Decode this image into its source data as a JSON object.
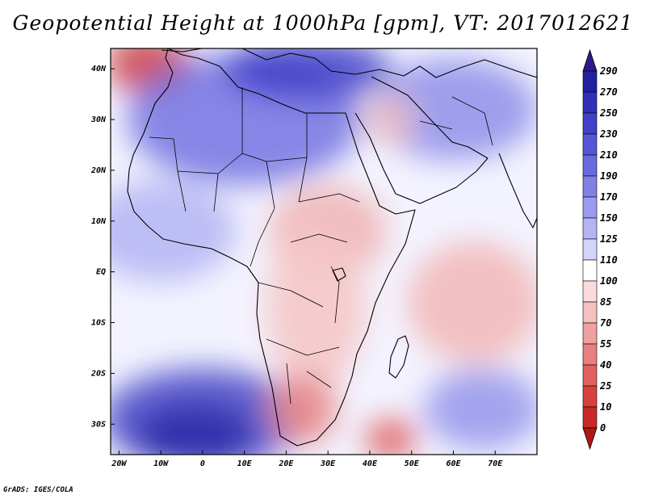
{
  "title": "Geopotential Height at 1000hPa [gpm], VT: 2017012621",
  "credit": "GrADS: IGES/COLA",
  "map": {
    "lon_range": [
      -22,
      80
    ],
    "lat_range": [
      -36,
      44
    ],
    "lat_ticks": [
      {
        "value": 40,
        "label": "40N"
      },
      {
        "value": 30,
        "label": "30N"
      },
      {
        "value": 20,
        "label": "20N"
      },
      {
        "value": 10,
        "label": "10N"
      },
      {
        "value": 0,
        "label": "EQ"
      },
      {
        "value": -10,
        "label": "10S"
      },
      {
        "value": -20,
        "label": "20S"
      },
      {
        "value": -30,
        "label": "30S"
      }
    ],
    "lon_ticks": [
      {
        "value": -20,
        "label": "20W"
      },
      {
        "value": -10,
        "label": "10W"
      },
      {
        "value": 0,
        "label": "0"
      },
      {
        "value": 10,
        "label": "10E"
      },
      {
        "value": 20,
        "label": "20E"
      },
      {
        "value": 30,
        "label": "30E"
      },
      {
        "value": 40,
        "label": "40E"
      },
      {
        "value": 50,
        "label": "50E"
      },
      {
        "value": 60,
        "label": "60E"
      },
      {
        "value": 70,
        "label": "70E"
      }
    ],
    "field_background": "#f3f3ff",
    "field_blobs": [
      {
        "name": "atlantic-north-low",
        "lon": -13,
        "lat": 41,
        "rlon": 10,
        "rlat": 6,
        "color": "#cc4040",
        "opacity": 0.85
      },
      {
        "name": "saharan-high",
        "lon": 10,
        "lat": 30,
        "rlon": 28,
        "rlat": 13,
        "color": "#6a6ae0",
        "opacity": 0.8
      },
      {
        "name": "mediterranean-high",
        "lon": 25,
        "lat": 40,
        "rlon": 20,
        "rlat": 6,
        "color": "#4040c8",
        "opacity": 0.85
      },
      {
        "name": "atlantic-tropical-high",
        "lon": -10,
        "lat": 8,
        "rlon": 18,
        "rlat": 10,
        "color": "#b8b8f5",
        "opacity": 0.9
      },
      {
        "name": "south-atlantic-high",
        "lon": 0,
        "lat": -29,
        "rlon": 24,
        "rlat": 10,
        "color": "#4848c8",
        "opacity": 0.85
      },
      {
        "name": "south-atlantic-core",
        "lon": -2,
        "lat": -32,
        "rlon": 14,
        "rlat": 6,
        "color": "#2a2aa8",
        "opacity": 0.85
      },
      {
        "name": "arabia-high",
        "lon": 60,
        "lat": 32,
        "rlon": 20,
        "rlat": 10,
        "color": "#8a8ae8",
        "opacity": 0.8
      },
      {
        "name": "indian-ocean-high",
        "lon": 67,
        "lat": -27,
        "rlon": 14,
        "rlat": 8,
        "color": "#8a8ae8",
        "opacity": 0.75
      },
      {
        "name": "horn-low",
        "lon": 30,
        "lat": 8,
        "rlon": 14,
        "rlat": 9,
        "color": "#f0b8b8",
        "opacity": 0.95
      },
      {
        "name": "central-africa-low",
        "lon": 27,
        "lat": -7,
        "rlon": 12,
        "rlat": 16,
        "color": "#f5c8c8",
        "opacity": 0.9
      },
      {
        "name": "southern-africa-low",
        "lon": 24,
        "lat": -27,
        "rlon": 8,
        "rlat": 7,
        "color": "#e88888",
        "opacity": 0.9
      },
      {
        "name": "madagascar-low",
        "lon": 45,
        "lat": -33,
        "rlon": 6,
        "rlat": 4,
        "color": "#dd5555",
        "opacity": 0.85
      },
      {
        "name": "indian-ocean-low",
        "lon": 65,
        "lat": -6,
        "rlon": 16,
        "rlat": 12,
        "color": "#f2baba",
        "opacity": 0.9
      },
      {
        "name": "red-sea-low",
        "lon": 45,
        "lat": 30,
        "rlon": 6,
        "rlat": 5,
        "color": "#f0c0c0",
        "opacity": 0.85
      }
    ],
    "coast_color": "#000000"
  },
  "colorbar": {
    "labels": [
      "290",
      "270",
      "250",
      "230",
      "210",
      "190",
      "170",
      "150",
      "125",
      "110",
      "100",
      "85",
      "70",
      "55",
      "40",
      "25",
      "10",
      "0"
    ],
    "colors": [
      "#2020a0",
      "#3030b8",
      "#4040c8",
      "#5555d5",
      "#6a6ae0",
      "#8080e8",
      "#9a9af0",
      "#b4b4f5",
      "#d4d4fa",
      "#ffffff",
      "#fadada",
      "#f5c0c0",
      "#f0a0a0",
      "#e88080",
      "#e06060",
      "#d84040",
      "#c82828"
    ],
    "top_color": "#2a1a8a",
    "bottom_color": "#b01818"
  }
}
